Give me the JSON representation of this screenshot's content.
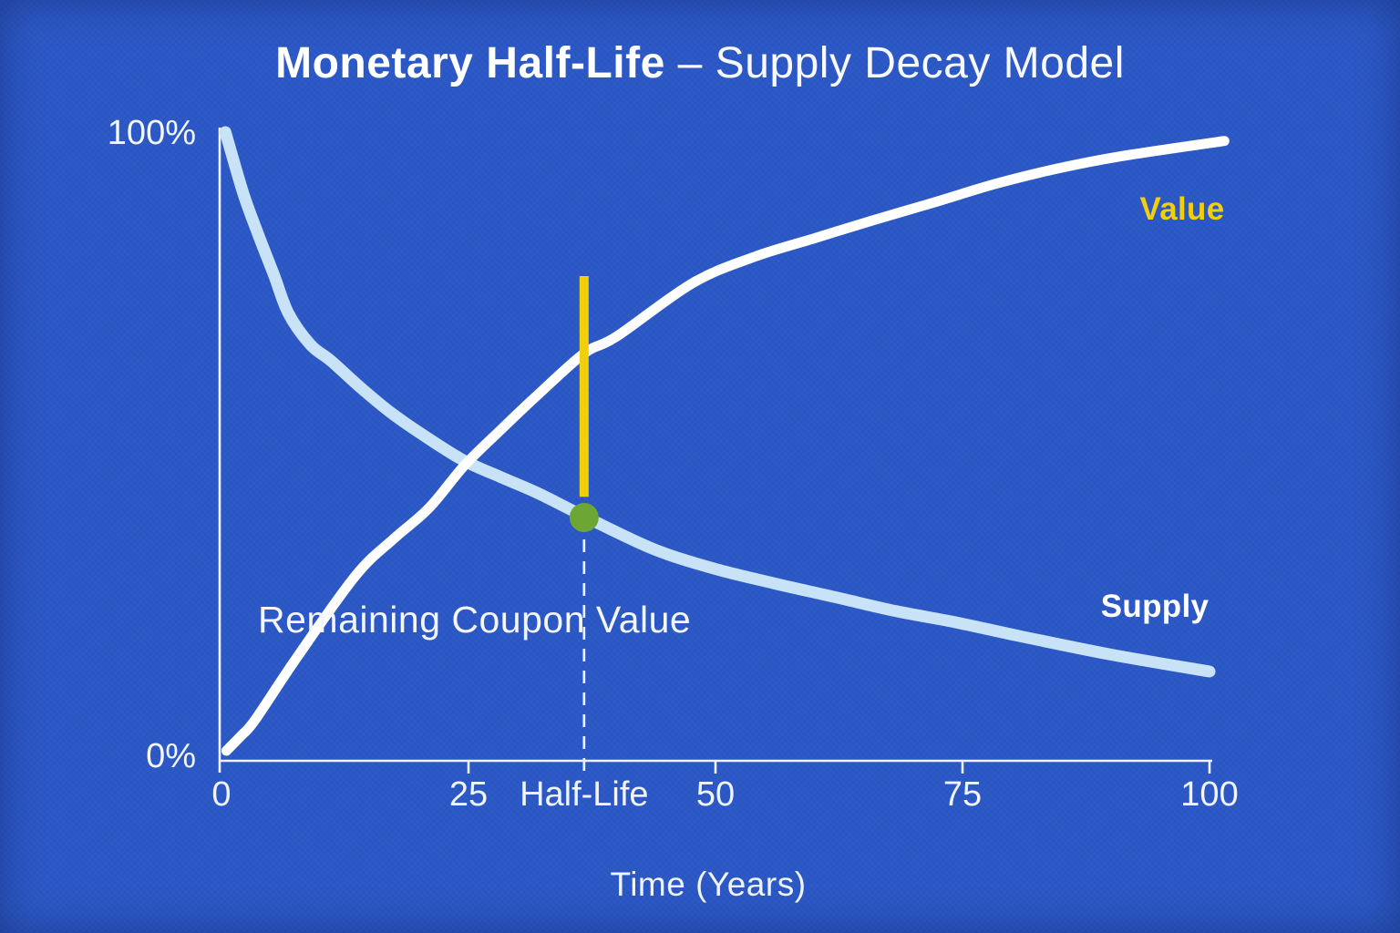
{
  "page": {
    "background_color": "#2B58C6"
  },
  "chart_data": {
    "type": "line",
    "title": {
      "bold": "Monetary Half-Life",
      "rest": " – Supply Decay Model"
    },
    "xlabel": "Time (Years)",
    "x_range": [
      0,
      100
    ],
    "y_range": [
      0,
      100
    ],
    "grid": "off",
    "axis_color": "#EDF2FB",
    "text_color": "#F2F6FD",
    "y_axis": {
      "top_label": "100%",
      "bottom_label": "0%"
    },
    "x_ticks": [
      {
        "value": 0,
        "label": "0",
        "major": true
      },
      {
        "value": 25,
        "label": "25",
        "major": true
      },
      {
        "value": 36.7,
        "label": "Half-Life",
        "major": false
      },
      {
        "value": 50,
        "label": "50",
        "major": true
      },
      {
        "value": 75,
        "label": "75",
        "major": true
      },
      {
        "value": 100,
        "label": "100",
        "major": true
      }
    ],
    "half_life": {
      "t": 36.7,
      "marker_pct": 38.7,
      "marker_color": "#6CA634",
      "marker_radius": 16,
      "coupon_bar": {
        "pct_from": 42.0,
        "pct_to": 77.1,
        "color": "#F2CF0D",
        "width": 10
      },
      "guide_color": "#E9EFF9"
    },
    "annotation": {
      "label": "Remaining Coupon Value"
    },
    "series": [
      {
        "name": "Supply",
        "color": "#C8E3F7",
        "label_color": "#FFFFFF",
        "stroke_width": 13,
        "points": [
          [
            0.4,
            100
          ],
          [
            2.2,
            90.3
          ],
          [
            3.7,
            83.8
          ],
          [
            5.3,
            77.3
          ],
          [
            6.8,
            71.1
          ],
          [
            9,
            66.2
          ],
          [
            11.1,
            63.6
          ],
          [
            14.2,
            59.2
          ],
          [
            17.3,
            55.2
          ],
          [
            20.9,
            51.3
          ],
          [
            24.6,
            47.7
          ],
          [
            28.3,
            45.1
          ],
          [
            32,
            42.6
          ],
          [
            36.7,
            38.9
          ],
          [
            43.7,
            33.7
          ],
          [
            49.8,
            30.6
          ],
          [
            56,
            28.2
          ],
          [
            62.2,
            26.0
          ],
          [
            68.3,
            23.8
          ],
          [
            74.4,
            22.0
          ],
          [
            80.6,
            19.9
          ],
          [
            90,
            16.9
          ],
          [
            100,
            14.2
          ]
        ]
      },
      {
        "name": "Value",
        "color": "#FFFFFF",
        "label_color": "#F2CF0D",
        "stroke_width": 11,
        "points": [
          [
            0.5,
            1.6
          ],
          [
            2,
            4.0
          ],
          [
            3.4,
            6.5
          ],
          [
            7.7,
            16.6
          ],
          [
            13.6,
            29.5
          ],
          [
            17.5,
            35.4
          ],
          [
            21,
            40.2
          ],
          [
            24.6,
            47.0
          ],
          [
            28.3,
            52.7
          ],
          [
            32,
            58.2
          ],
          [
            36.7,
            64.8
          ],
          [
            40,
            67.5
          ],
          [
            47.7,
            76.0
          ],
          [
            54,
            80.2
          ],
          [
            60,
            83.1
          ],
          [
            66,
            86.0
          ],
          [
            72.3,
            88.9
          ],
          [
            78.4,
            91.8
          ],
          [
            84.6,
            94.2
          ],
          [
            90.8,
            96.1
          ],
          [
            101.5,
            98.6
          ]
        ]
      }
    ]
  }
}
